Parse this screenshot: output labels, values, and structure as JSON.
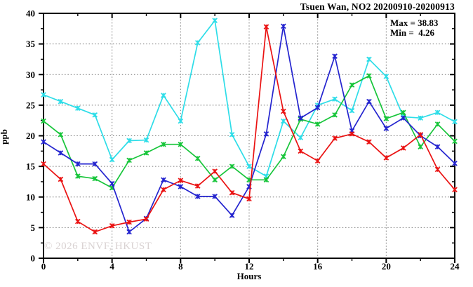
{
  "title": "Tsuen Wan, NO2 20200910-20200913",
  "stats": {
    "max_label": "Max = 38.83",
    "min_label": "Min =  4.26"
  },
  "watermark": "© 2026 ENVF, HKUST",
  "axes": {
    "ylabel": "ppb",
    "xlabel": "Hours"
  },
  "chart_data": {
    "type": "line",
    "title": "Tsuen Wan, NO2 20200910-20200913",
    "xlabel": "Hours",
    "ylabel": "ppb",
    "xlim": [
      0,
      24
    ],
    "ylim": [
      0,
      40
    ],
    "xticks": [
      0,
      4,
      8,
      12,
      16,
      20,
      24
    ],
    "xminor_step": 2,
    "yticks": [
      0,
      5,
      10,
      15,
      20,
      25,
      30,
      35,
      40
    ],
    "yminor_step": 2.5,
    "grid": "dotted",
    "legend_position": "none",
    "max_value": 38.83,
    "min_value": 4.26,
    "x": [
      0,
      1,
      2,
      3,
      4,
      5,
      6,
      7,
      8,
      9,
      10,
      11,
      12,
      13,
      14,
      15,
      16,
      17,
      18,
      19,
      20,
      21,
      22,
      23,
      24
    ],
    "series": [
      {
        "name": "cyan-series",
        "color": "#2edde8",
        "values": [
          26.7,
          25.6,
          24.5,
          23.4,
          16.1,
          19.2,
          19.3,
          26.6,
          22.4,
          35.2,
          38.83,
          20.2,
          15.0,
          13.4,
          22.4,
          19.7,
          25.0,
          26.0,
          24.1,
          32.5,
          29.7,
          23.1,
          22.9,
          23.8,
          22.3
        ]
      },
      {
        "name": "green-series",
        "color": "#17c53a",
        "values": [
          22.4,
          20.2,
          13.4,
          13.0,
          11.5,
          16.0,
          17.2,
          18.6,
          18.6,
          16.3,
          12.8,
          15.0,
          12.8,
          12.8,
          16.6,
          22.7,
          21.9,
          23.4,
          28.3,
          29.8,
          22.8,
          23.8,
          18.2,
          21.9,
          19.1
        ]
      },
      {
        "name": "blue-series",
        "color": "#2424cf",
        "values": [
          19.0,
          17.2,
          15.4,
          15.4,
          12.2,
          4.3,
          6.5,
          12.8,
          11.7,
          10.1,
          10.1,
          7.0,
          11.7,
          20.3,
          37.9,
          22.9,
          24.6,
          33.0,
          20.8,
          25.6,
          21.2,
          22.9,
          20.0,
          18.2,
          15.5
        ]
      },
      {
        "name": "red-series",
        "color": "#ea1212",
        "values": [
          15.4,
          12.9,
          6.0,
          4.3,
          5.3,
          5.9,
          6.4,
          11.2,
          12.7,
          11.8,
          14.2,
          10.7,
          9.7,
          37.8,
          24.0,
          17.5,
          15.9,
          19.6,
          20.3,
          19.0,
          16.4,
          18.0,
          20.2,
          14.5,
          11.2
        ]
      }
    ]
  }
}
